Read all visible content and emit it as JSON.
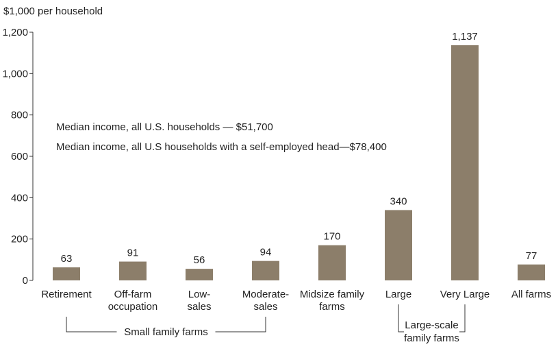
{
  "chart_data": {
    "type": "bar",
    "ylabel": "$1,000 per household",
    "ylim": [
      0,
      1200
    ],
    "yticks": [
      0,
      200,
      400,
      600,
      800,
      1000,
      1200
    ],
    "ytick_labels": [
      "0",
      "200",
      "400",
      "600",
      "800",
      "1,000",
      "1,200"
    ],
    "categories": [
      [
        "Retirement"
      ],
      [
        "Off-farm",
        "occupation"
      ],
      [
        "Low-",
        "sales"
      ],
      [
        "Moderate-",
        "sales"
      ],
      [
        "Midsize family",
        "farms"
      ],
      [
        "Large"
      ],
      [
        "Very Large"
      ],
      [
        "All farms"
      ]
    ],
    "values": [
      63,
      91,
      56,
      94,
      170,
      340,
      1137,
      77
    ],
    "value_labels": [
      "63",
      "91",
      "56",
      "94",
      "170",
      "340",
      "1,137",
      "77"
    ],
    "bar_color": "#8c7e6a",
    "annotations": [
      "Median income, all U.S. households — $51,700",
      "Median income, all U.S households with a self-employed head—$78,400"
    ],
    "groups": [
      {
        "label": [
          "Small family farms"
        ],
        "from": 0,
        "to": 3
      },
      {
        "label": [
          "Large-scale",
          "family farms"
        ],
        "from": 5,
        "to": 6
      }
    ],
    "grid": false
  }
}
